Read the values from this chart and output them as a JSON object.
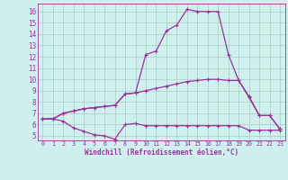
{
  "xlabel": "Windchill (Refroidissement éolien,°C)",
  "bg_color": "#cff0ee",
  "line_color": "#993399",
  "grid_color": "#aaccbb",
  "xlim": [
    -0.5,
    23.5
  ],
  "ylim": [
    4.6,
    16.7
  ],
  "xticks": [
    0,
    1,
    2,
    3,
    4,
    5,
    6,
    7,
    8,
    9,
    10,
    11,
    12,
    13,
    14,
    15,
    16,
    17,
    18,
    19,
    20,
    21,
    22,
    23
  ],
  "yticks": [
    5,
    6,
    7,
    8,
    9,
    10,
    11,
    12,
    13,
    14,
    15,
    16
  ],
  "series1": [
    6.5,
    6.5,
    7.0,
    7.2,
    7.4,
    7.5,
    7.6,
    7.7,
    8.7,
    8.8,
    9.0,
    9.2,
    9.4,
    9.6,
    9.8,
    9.9,
    10.0,
    10.0,
    9.9,
    9.9,
    8.5,
    6.8,
    6.8,
    5.6
  ],
  "series2": [
    6.5,
    6.5,
    7.0,
    7.2,
    7.4,
    7.5,
    7.6,
    7.7,
    8.7,
    8.8,
    12.2,
    12.5,
    14.3,
    14.8,
    16.2,
    16.0,
    16.0,
    16.0,
    12.2,
    9.9,
    8.4,
    6.8,
    6.8,
    5.6
  ],
  "series3": [
    6.5,
    6.5,
    6.3,
    5.7,
    5.4,
    5.1,
    5.0,
    4.7,
    6.0,
    6.1,
    5.9,
    5.9,
    5.9,
    5.9,
    5.9,
    5.9,
    5.9,
    5.9,
    5.9,
    5.9,
    5.5,
    5.5,
    5.5,
    5.5
  ]
}
